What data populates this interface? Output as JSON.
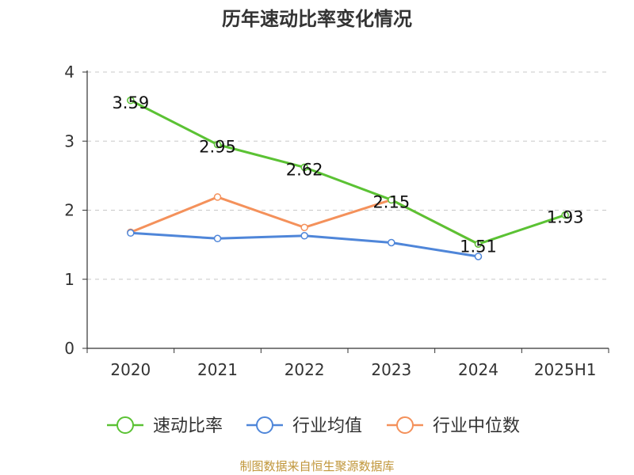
{
  "title": "历年速动比率变化情况",
  "source": "制图数据来自恒生聚源数据库",
  "colors": {
    "series_quick_ratio": "#5bc234",
    "series_industry_avg": "#4f86d9",
    "series_industry_median": "#f4915b",
    "axis": "#333333",
    "grid": "#c8c8c8",
    "source_text": "#c0963a"
  },
  "chart_data": {
    "type": "line",
    "title": "历年速动比率变化情况",
    "xlabel": "",
    "ylabel": "",
    "categories": [
      "2020",
      "2021",
      "2022",
      "2023",
      "2024",
      "2025H1"
    ],
    "ylim": [
      0,
      4
    ],
    "yticks": [
      "0",
      "1",
      "2",
      "3",
      "4"
    ],
    "grid": true,
    "legend_position": "bottom",
    "series": [
      {
        "name": "速动比率",
        "values": [
          3.59,
          2.95,
          2.62,
          2.15,
          1.51,
          1.93
        ],
        "labels": [
          "3.59",
          "2.95",
          "2.62",
          "2.15",
          "1.51",
          "1.93"
        ],
        "color": "#5bc234"
      },
      {
        "name": "行业均值",
        "values": [
          1.67,
          1.59,
          1.63,
          1.53,
          1.33,
          null
        ],
        "color": "#4f86d9"
      },
      {
        "name": "行业中位数",
        "values": [
          1.68,
          2.19,
          1.75,
          2.15,
          1.51,
          null
        ],
        "color": "#f4915b"
      }
    ]
  }
}
